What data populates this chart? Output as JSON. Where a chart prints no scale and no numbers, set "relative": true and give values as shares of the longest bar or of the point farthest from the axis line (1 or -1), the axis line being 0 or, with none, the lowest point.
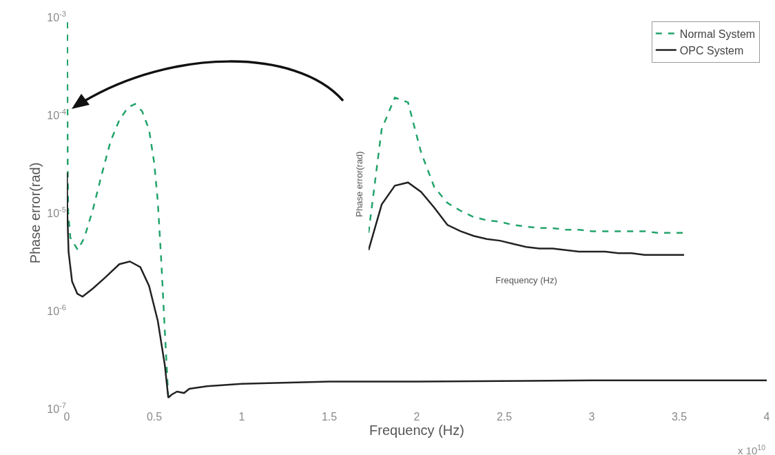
{
  "chart_data": [
    {
      "type": "line",
      "xlabel": "Frequency (Hz)",
      "ylabel": "Phase error(rad)",
      "log": "y",
      "xlim": [
        0,
        4
      ],
      "xticks": [
        0,
        0.5,
        1,
        1.5,
        2,
        2.5,
        3,
        3.5,
        4
      ],
      "ylim": [
        1e-07,
        0.001
      ],
      "yticks": [
        {
          "value": 0.001,
          "label": "10$^{-3}$"
        },
        {
          "value": 0.0001,
          "label": "10$^{-4}$"
        },
        {
          "value": 1e-05,
          "label": "10$^{-5}$"
        },
        {
          "value": 1e-06,
          "label": "10$^{-6}$"
        },
        {
          "value": 1e-07,
          "label": "10$^{-7}$"
        }
      ],
      "grid": false,
      "legend": "top right",
      "marker": "none",
      "annotations": [
        "x 10$^{10}$"
      ],
      "series": [
        {
          "name": "Normal System",
          "color": "#23a36b",
          "line_style": "dashed",
          "x": [
            0.003,
            0.003,
            0.004,
            0.005,
            0.008,
            0.02,
            0.063,
            0.1,
            0.15,
            0.2,
            0.25,
            0.3,
            0.35,
            0.39,
            0.43,
            0.47,
            0.5,
            0.52,
            0.54,
            0.56,
            0.58
          ],
          "values": [
            0.00089,
            0.00032,
            0.0001,
            3.2e-05,
            1e-05,
            5.6e-06,
            4.2e-06,
            5.6e-06,
            1.1e-05,
            2.5e-05,
            5.4e-05,
            8.9e-05,
            0.00012,
            0.00013,
            0.00011,
            7.1e-05,
            3.2e-05,
            1.3e-05,
            3.2e-06,
            6.3e-07,
            1.3e-07
          ]
        },
        {
          "name": "OPC System",
          "color": "#222222",
          "line_style": "solid",
          "x": [
            0.001,
            0.003,
            0.01,
            0.03,
            0.06,
            0.09,
            0.15,
            0.22,
            0.3,
            0.36,
            0.42,
            0.47,
            0.52,
            0.56,
            0.58,
            0.6,
            0.63,
            0.67,
            0.7,
            0.8,
            1,
            1.5,
            2,
            3,
            4
          ],
          "values": [
            2.6e-05,
            1e-05,
            4e-06,
            2e-06,
            1.5e-06,
            1.4e-06,
            1.7e-06,
            2.2e-06,
            3e-06,
            3.2e-06,
            2.8e-06,
            1.8e-06,
            7.9e-07,
            2.8e-07,
            1.3e-07,
            1.4e-07,
            1.5e-07,
            1.45e-07,
            1.6e-07,
            1.7e-07,
            1.8e-07,
            1.9e-07,
            1.9e-07,
            1.95e-07,
            1.95e-07
          ]
        }
      ]
    },
    {
      "type": "line",
      "xlabel": "Frequency (Hz)",
      "ylabel": "Phase error(rad)",
      "relative": true,
      "grid": false,
      "legend": false,
      "marker": "none",
      "categories": [
        null,
        null,
        null,
        null,
        null,
        null,
        null,
        null,
        null,
        null,
        null,
        null,
        null,
        null,
        null,
        null,
        null,
        null,
        null,
        null,
        null,
        null,
        null,
        null,
        null
      ],
      "series": [
        {
          "color": "#23a36b",
          "line_style": "dashed",
          "values": [
            0.14,
            0.8,
            1,
            0.97,
            0.65,
            0.43,
            0.33,
            0.28,
            0.24,
            0.22,
            0.21,
            0.19,
            0.18,
            0.17,
            0.17,
            0.16,
            0.16,
            0.15,
            0.15,
            0.15,
            0.15,
            0.15,
            0.14,
            0.14,
            0.14
          ]
        },
        {
          "color": "#222222",
          "line_style": "solid",
          "values": [
            0.03,
            0.32,
            0.44,
            0.46,
            0.4,
            0.3,
            0.19,
            0.15,
            0.12,
            0.1,
            0.09,
            0.07,
            0.05,
            0.04,
            0.04,
            0.03,
            0.02,
            0.02,
            0.02,
            0.01,
            0.01,
            0,
            0,
            0,
            0
          ]
        }
      ]
    }
  ]
}
